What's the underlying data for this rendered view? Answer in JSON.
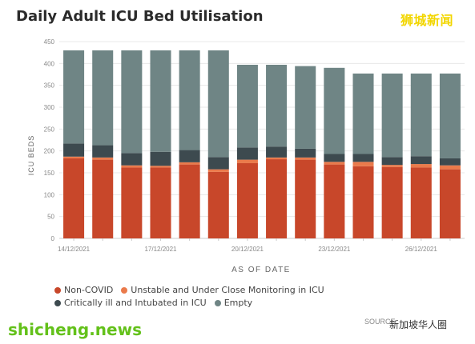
{
  "header": {
    "title": "Daily Adult ICU Bed Utilisation"
  },
  "watermarks": {
    "top_right": "狮城新闻",
    "bottom_left": "shicheng.news",
    "bottom_right": "新加坡华人圈",
    "source_fragment": "SOURCE"
  },
  "colors": {
    "non_covid": "#c8472a",
    "unstable": "#ea7a4b",
    "critical": "#3d4a4f",
    "empty": "#6f8585",
    "axis_text": "#888888",
    "grid": "#e8e8e8"
  },
  "chart_data": {
    "type": "bar",
    "stacked": true,
    "categories": [
      "14/12/2021",
      "15/12/2021",
      "16/12/2021",
      "17/12/2021",
      "18/12/2021",
      "19/12/2021",
      "20/12/2021",
      "21/12/2021",
      "22/12/2021",
      "23/12/2021",
      "24/12/2021",
      "25/12/2021",
      "26/12/2021",
      "27/12/2021"
    ],
    "x_tick_labels": [
      "14/12/2021",
      "",
      "",
      "17/12/2021",
      "",
      "",
      "20/12/2021",
      "",
      "",
      "23/12/2021",
      "",
      "",
      "26/12/2021",
      ""
    ],
    "series": [
      {
        "name": "Non-COVID",
        "color": "#c8472a",
        "values": [
          183,
          180,
          162,
          162,
          169,
          152,
          172,
          181,
          180,
          169,
          165,
          163,
          162,
          158
        ]
      },
      {
        "name": "Unstable and Under Close Monitoring in ICU",
        "color": "#ea7a4b",
        "values": [
          4,
          5,
          5,
          4,
          5,
          6,
          8,
          4,
          5,
          6,
          10,
          5,
          8,
          9
        ]
      },
      {
        "name": "Critically ill and Intubated in ICU",
        "color": "#3d4a4f",
        "values": [
          30,
          28,
          28,
          32,
          28,
          28,
          28,
          25,
          20,
          18,
          18,
          18,
          18,
          16
        ]
      },
      {
        "name": "Empty",
        "color": "#6f8585",
        "values": [
          213,
          217,
          235,
          232,
          228,
          244,
          189,
          187,
          189,
          197,
          184,
          191,
          189,
          194
        ]
      }
    ],
    "xlabel": "AS OF DATE",
    "ylabel": "ICU BEDS",
    "ylim": [
      0,
      450
    ],
    "yticks": [
      0,
      50,
      100,
      150,
      200,
      250,
      300,
      350,
      400,
      450
    ],
    "grid": true,
    "legend_position": "bottom"
  }
}
